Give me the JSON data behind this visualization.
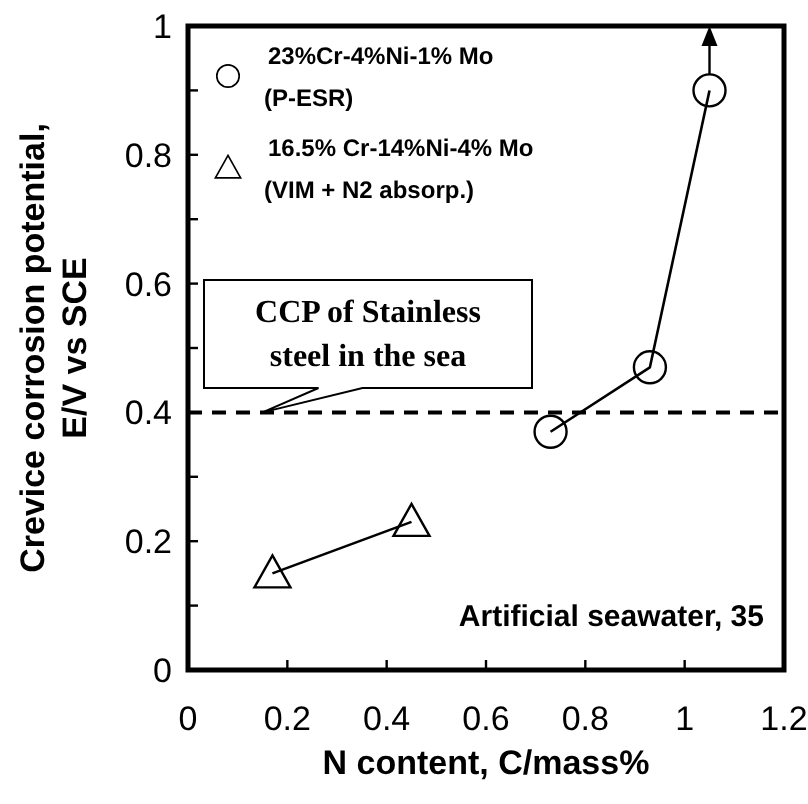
{
  "chart_data": {
    "type": "line",
    "xlabel": "N content, C/mass%",
    "ylabel": "Crevice corrosion potential,\nE/V vs SCE",
    "xlim": [
      0,
      1.2
    ],
    "xticks": [
      0,
      0.2,
      0.4,
      0.6,
      0.8,
      1,
      1.2
    ],
    "ylim": [
      0,
      1
    ],
    "yticks": [
      0,
      {
        "value": 0.1,
        "label": null
      },
      0.2,
      {
        "value": 0.3,
        "label": null
      },
      0.4,
      {
        "value": 0.5,
        "label": null
      },
      0.6,
      {
        "value": 0.7,
        "label": null
      },
      0.8,
      {
        "value": 0.9,
        "label": null
      },
      1
    ],
    "series": [
      {
        "name": "23%Cr-4%Ni-1% Mo\n(P-ESR)",
        "color": "#000000",
        "marker": "circle",
        "x": [
          0.73,
          0.93,
          1.05
        ],
        "values": [
          0.37,
          0.47,
          0.9
        ]
      },
      {
        "name": "16.5% Cr-14%Ni-4% Mo\n(VIM + N2 absorp.)",
        "color": "#000000",
        "marker": "triangle",
        "x": [
          0.17,
          0.45
        ],
        "values": [
          0.15,
          0.23
        ]
      }
    ],
    "ref_lines": [
      {
        "axis": "y",
        "value": 0.4,
        "line_style": "dashed",
        "color": "#000000"
      }
    ],
    "annotations": [
      {
        "text": "CCP of Stainless\nsteel in the sea",
        "x": 0.15,
        "y": 0.4
      },
      "Artificial seawater, 35"
    ],
    "legend": "top left",
    "grid": false
  }
}
